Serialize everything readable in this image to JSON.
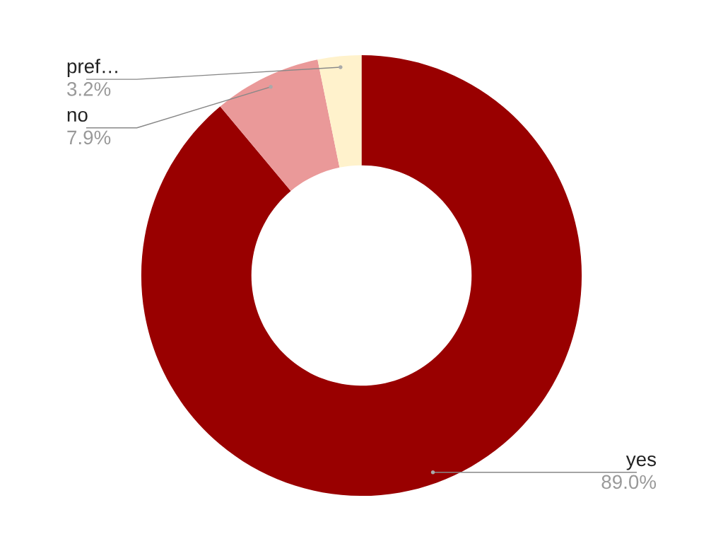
{
  "chart_data": {
    "type": "donut",
    "categories": [
      "yes",
      "no",
      "pref…"
    ],
    "values": [
      89.0,
      7.9,
      3.2
    ],
    "value_labels": [
      "89.0%",
      "7.9%",
      "3.2%"
    ],
    "colors": [
      "#990000",
      "#ea9999",
      "#fff2cc"
    ],
    "legend": false
  }
}
